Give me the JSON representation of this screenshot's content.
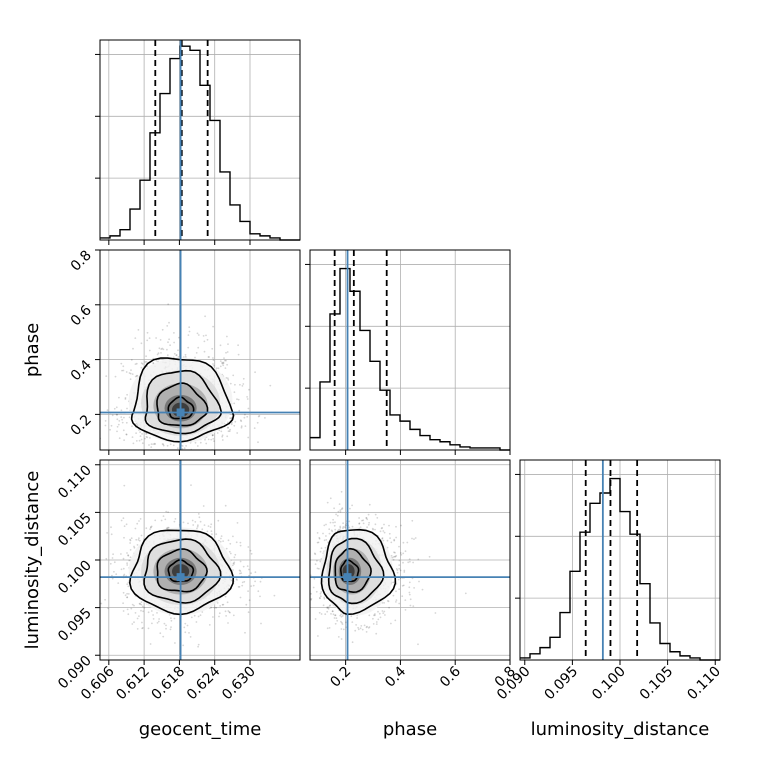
{
  "chart_data": {
    "type": "corner",
    "parameters": [
      "geocent_time",
      "phase",
      "luminosity_distance"
    ],
    "axis_labels": {
      "geocent_time": "geocent_time",
      "phase": "phase",
      "luminosity_distance": "luminosity_distance"
    },
    "ranges": {
      "geocent_time": [
        0.6045,
        0.6385
      ],
      "phase": [
        0.07,
        0.8
      ],
      "luminosity_distance": [
        0.0895,
        0.1105
      ]
    },
    "ticks": {
      "geocent_time": [
        0.606,
        0.612,
        0.618,
        0.624,
        0.63
      ],
      "phase": [
        0.2,
        0.4,
        0.6,
        0.8
      ],
      "luminosity_distance": [
        0.09,
        0.095,
        0.1,
        0.105,
        0.11
      ]
    },
    "tick_labels": {
      "geocent_time": [
        "0.606",
        "0.612",
        "0.618",
        "0.624",
        "0.630"
      ],
      "phase": [
        "0.2",
        "0.4",
        "0.6",
        "0.8"
      ],
      "luminosity_distance": [
        "0.090",
        "0.095",
        "0.100",
        "0.105",
        "0.110"
      ]
    },
    "truths": {
      "geocent_time": 0.6182,
      "phase": 0.207,
      "luminosity_distance": 0.0982
    },
    "quantiles": {
      "geocent_time": [
        0.6139,
        0.6184,
        0.6228
      ],
      "phase": [
        0.16,
        0.23,
        0.35
      ],
      "luminosity_distance": [
        0.0964,
        0.099,
        0.1018
      ]
    },
    "histograms": {
      "geocent_time": {
        "edges": [
          0.6045,
          0.6062,
          0.6079,
          0.6096,
          0.6113,
          0.613,
          0.6147,
          0.6164,
          0.6181,
          0.6198,
          0.6215,
          0.6232,
          0.6249,
          0.6266,
          0.6283,
          0.63,
          0.6317,
          0.6334,
          0.6351,
          0.6368,
          0.6385
        ],
        "counts": [
          0.01,
          0.02,
          0.05,
          0.15,
          0.29,
          0.52,
          0.71,
          0.88,
          0.94,
          0.92,
          0.75,
          0.58,
          0.33,
          0.17,
          0.09,
          0.03,
          0.02,
          0.01,
          0.0,
          0.0
        ]
      },
      "phase": {
        "edges": [
          0.07,
          0.1065,
          0.143,
          0.1795,
          0.216,
          0.2525,
          0.289,
          0.3255,
          0.362,
          0.3985,
          0.435,
          0.4715,
          0.508,
          0.5445,
          0.581,
          0.6175,
          0.654,
          0.6905,
          0.727,
          0.7635,
          0.8
        ],
        "counts": [
          0.06,
          0.33,
          0.66,
          0.88,
          0.77,
          0.58,
          0.43,
          0.29,
          0.17,
          0.14,
          0.1,
          0.07,
          0.05,
          0.04,
          0.025,
          0.015,
          0.01,
          0.01,
          0.01,
          0.0
        ]
      },
      "luminosity_distance": {
        "edges": [
          0.0895,
          0.09055,
          0.0916,
          0.09265,
          0.0937,
          0.09475,
          0.0958,
          0.09685,
          0.0979,
          0.09895,
          0.1,
          0.10105,
          0.1021,
          0.10315,
          0.1042,
          0.10525,
          0.1063,
          0.10735,
          0.1084,
          0.10945,
          0.1105
        ],
        "counts": [
          0.01,
          0.03,
          0.06,
          0.11,
          0.23,
          0.43,
          0.62,
          0.76,
          0.81,
          0.88,
          0.72,
          0.61,
          0.37,
          0.18,
          0.08,
          0.04,
          0.02,
          0.01,
          0.0,
          0.0
        ]
      }
    },
    "hist_ymax": 0.97,
    "hist_yticks": [
      0.3,
      0.6,
      0.9
    ],
    "pairs": [
      {
        "x": "geocent_time",
        "y": "phase",
        "center": [
          0.6182,
          0.21
        ],
        "spread": [
          0.0042,
          0.065
        ]
      },
      {
        "x": "geocent_time",
        "y": "luminosity_distance",
        "center": [
          0.6182,
          0.0988
        ],
        "spread": [
          0.0042,
          0.0022
        ]
      },
      {
        "x": "phase",
        "y": "luminosity_distance",
        "center": [
          0.205,
          0.0988
        ],
        "spread": [
          0.055,
          0.0022
        ]
      }
    ],
    "contour_levels": [
      0.5,
      1.0,
      1.5,
      2.0
    ],
    "colors": {
      "histogram": "#000000",
      "quantile_line": "#000000",
      "truth": "#4682b4",
      "grid": "#b0b0b0",
      "points": "#000000"
    },
    "grid": true
  }
}
